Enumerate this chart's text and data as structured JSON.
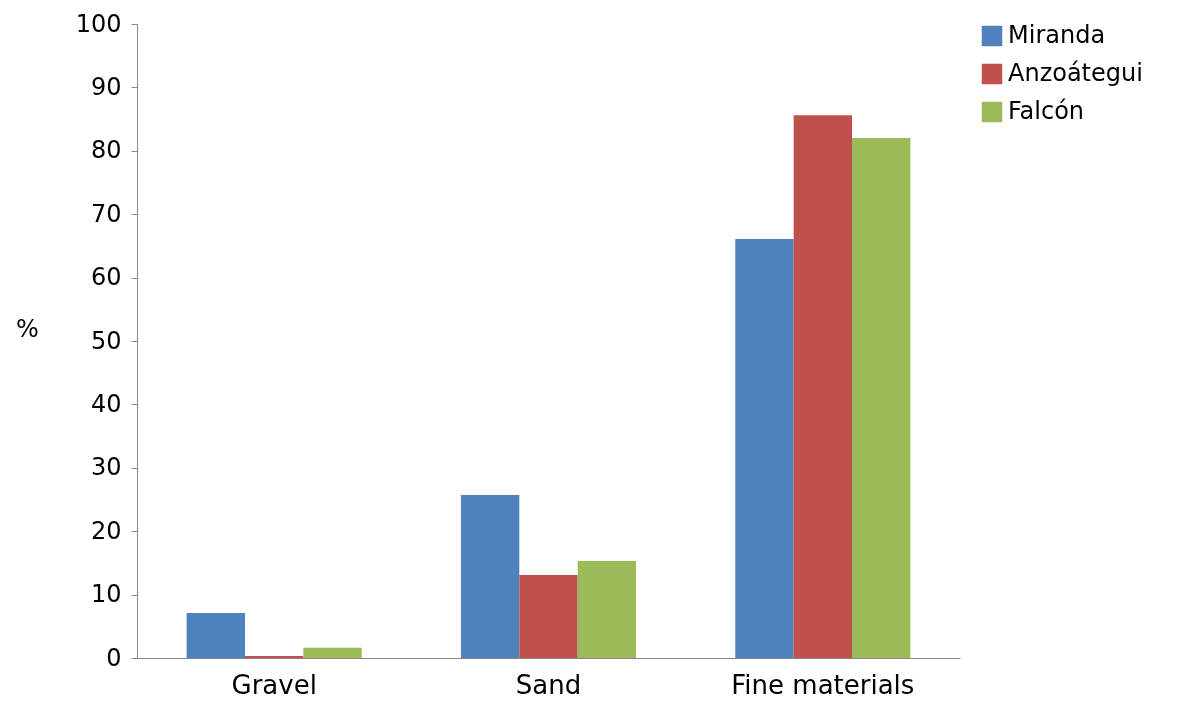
{
  "chart_data": {
    "type": "bar",
    "ylabel": "%",
    "categories": [
      "Gravel",
      "Sand",
      "Fine materials"
    ],
    "series": [
      {
        "name": "Miranda",
        "color": "#4f81bd",
        "values": [
          7.1,
          25.7,
          66.1
        ]
      },
      {
        "name": "Anzoátegui",
        "color": "#c0504d",
        "values": [
          0.3,
          13.1,
          85.6
        ]
      },
      {
        "name": "Falcón",
        "color": "#9bbb59",
        "values": [
          1.6,
          15.3,
          82.0
        ]
      }
    ],
    "ylim": [
      0,
      100
    ],
    "yticks": [
      0,
      10,
      20,
      30,
      40,
      50,
      60,
      70,
      80,
      90,
      100
    ],
    "grid": false,
    "legend": "right"
  }
}
